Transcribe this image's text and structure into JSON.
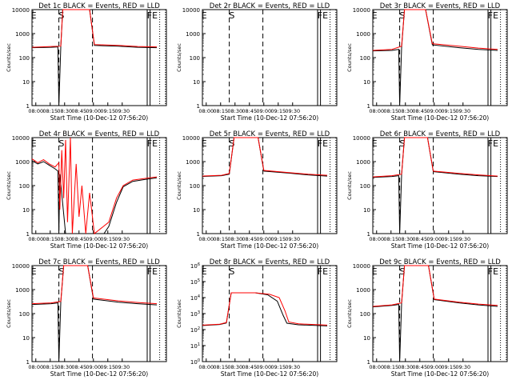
{
  "chart_data": [
    {
      "type": "line",
      "title": "Det 1c BLACK = Events, RED = LLD",
      "xlabel": "Start Time (10-Dec-12 07:56:20)",
      "ylabel": "Counts/sec",
      "x_ticks": [
        "08:00",
        "08:15",
        "08:30",
        "08:45",
        "09:00",
        "09:15",
        "09:30"
      ],
      "y_ticks": [
        "1",
        "10",
        "100",
        "1000",
        "10000"
      ],
      "y_scale": "log",
      "ylim": [
        1,
        10000
      ],
      "markers": [
        "E",
        "S",
        "",
        "",
        "",
        "FE",
        ""
      ],
      "series": [
        {
          "color": "#000000",
          "points": [
            [
              0,
              260
            ],
            [
              20,
              270
            ],
            [
              27,
              280
            ],
            [
              28,
              1
            ],
            [
              30,
              280
            ],
            [
              32,
              10000
            ],
            [
              60,
              10000
            ],
            [
              65,
              320
            ],
            [
              90,
              300
            ],
            [
              110,
              270
            ],
            [
              130,
              260
            ]
          ]
        },
        {
          "color": "#ff0000",
          "points": [
            [
              0,
              270
            ],
            [
              20,
              290
            ],
            [
              30,
              300
            ],
            [
              32,
              10000
            ],
            [
              60,
              10000
            ],
            [
              65,
              350
            ],
            [
              90,
              320
            ],
            [
              110,
              290
            ],
            [
              130,
              280
            ]
          ]
        }
      ]
    },
    {
      "type": "line",
      "title": "Det 2r BLACK = Events, RED = LLD",
      "xlabel": "Start Time (10-Dec-12 07:56:20)",
      "ylabel": "Counts/sec",
      "x_ticks": [
        "08:00",
        "08:15",
        "08:30",
        "08:45",
        "09:00",
        "09:15",
        "09:30"
      ],
      "y_ticks": [
        "1",
        "10",
        "100",
        "1000",
        "10000"
      ],
      "y_scale": "log",
      "ylim": [
        1,
        10000
      ],
      "markers": [
        "E",
        "S",
        "",
        "",
        "",
        "FE",
        ""
      ],
      "series": []
    },
    {
      "type": "line",
      "title": "Det 3r BLACK = Events, RED = LLD",
      "xlabel": "Start Time (10-Dec-12 07:56:20)",
      "ylabel": "Counts/sec",
      "x_ticks": [
        "08:00",
        "08:15",
        "08:30",
        "08:45",
        "09:00",
        "09:15",
        "09:30"
      ],
      "y_ticks": [
        "1",
        "10",
        "100",
        "1000",
        "10000"
      ],
      "y_scale": "log",
      "ylim": [
        1,
        10000
      ],
      "markers": [
        "E",
        "S",
        "",
        "",
        "",
        "FE",
        ""
      ],
      "series": [
        {
          "color": "#000000",
          "points": [
            [
              0,
              190
            ],
            [
              20,
              200
            ],
            [
              27,
              220
            ],
            [
              28,
              1
            ],
            [
              30,
              260
            ],
            [
              33,
              10000
            ],
            [
              55,
              10000
            ],
            [
              62,
              340
            ],
            [
              90,
              260
            ],
            [
              110,
              220
            ],
            [
              130,
              200
            ]
          ]
        },
        {
          "color": "#ff0000",
          "points": [
            [
              0,
              200
            ],
            [
              20,
              220
            ],
            [
              30,
              300
            ],
            [
              33,
              10000
            ],
            [
              55,
              10000
            ],
            [
              62,
              380
            ],
            [
              90,
              300
            ],
            [
              110,
              250
            ],
            [
              130,
              220
            ]
          ]
        }
      ]
    },
    {
      "type": "line",
      "title": "Det 4r BLACK = Events, RED = LLD",
      "xlabel": "Start Time (10-Dec-12 07:56:20)",
      "ylabel": "Counts/sec",
      "x_ticks": [
        "08:00",
        "08:15",
        "08:30",
        "08:45",
        "09:00",
        "09:15",
        "09:30"
      ],
      "y_ticks": [
        "1",
        "10",
        "100",
        "1000",
        "10000"
      ],
      "y_scale": "log",
      "ylim": [
        1,
        10000
      ],
      "markers": [
        "E",
        "S",
        "",
        "",
        "",
        "FE",
        ""
      ],
      "series": [
        {
          "color": "#000000",
          "points": [
            [
              0,
              1100
            ],
            [
              6,
              800
            ],
            [
              12,
              1000
            ],
            [
              18,
              700
            ],
            [
              24,
              500
            ],
            [
              27,
              400
            ],
            [
              28,
              1
            ],
            [
              29,
              300
            ],
            [
              35,
              1
            ],
            [
              60,
              1
            ],
            [
              75,
              1
            ],
            [
              80,
              2
            ],
            [
              88,
              20
            ],
            [
              95,
              90
            ],
            [
              105,
              150
            ],
            [
              118,
              180
            ],
            [
              130,
              210
            ]
          ]
        },
        {
          "color": "#ff0000",
          "points": [
            [
              0,
              1300
            ],
            [
              6,
              900
            ],
            [
              12,
              1200
            ],
            [
              18,
              800
            ],
            [
              24,
              600
            ],
            [
              28,
              900
            ],
            [
              29,
              10
            ],
            [
              31,
              3000
            ],
            [
              33,
              30
            ],
            [
              35,
              8000
            ],
            [
              37,
              3
            ],
            [
              40,
              10000
            ],
            [
              42,
              1
            ],
            [
              46,
              800
            ],
            [
              49,
              5
            ],
            [
              52,
              100
            ],
            [
              56,
              1
            ],
            [
              60,
              50
            ],
            [
              65,
              1
            ],
            [
              80,
              3
            ],
            [
              88,
              30
            ],
            [
              95,
              100
            ],
            [
              105,
              170
            ],
            [
              118,
              200
            ],
            [
              130,
              230
            ]
          ]
        }
      ]
    },
    {
      "type": "line",
      "title": "Det 5r BLACK = Events, RED = LLD",
      "xlabel": "Start Time (10-Dec-12 07:56:20)",
      "ylabel": "Counts/sec",
      "x_ticks": [
        "08:00",
        "08:15",
        "08:30",
        "08:45",
        "09:00",
        "09:15",
        "09:30"
      ],
      "y_ticks": [
        "1",
        "10",
        "100",
        "1000",
        "10000"
      ],
      "y_scale": "log",
      "ylim": [
        1,
        10000
      ],
      "markers": [
        "E",
        "S",
        "",
        "",
        "",
        "FE",
        ""
      ],
      "series": [
        {
          "color": "#000000",
          "points": [
            [
              0,
              240
            ],
            [
              20,
              260
            ],
            [
              28,
              300
            ],
            [
              33,
              10000
            ],
            [
              58,
              10000
            ],
            [
              64,
              400
            ],
            [
              90,
              330
            ],
            [
              110,
              280
            ],
            [
              130,
              250
            ]
          ]
        },
        {
          "color": "#ff0000",
          "points": [
            [
              0,
              250
            ],
            [
              20,
              270
            ],
            [
              28,
              320
            ],
            [
              33,
              10000
            ],
            [
              58,
              10000
            ],
            [
              64,
              430
            ],
            [
              90,
              350
            ],
            [
              110,
              300
            ],
            [
              130,
              270
            ]
          ]
        }
      ]
    },
    {
      "type": "line",
      "title": "Det 6r BLACK = Events, RED = LLD",
      "xlabel": "Start Time (10-Dec-12 07:56:20)",
      "ylabel": "Counts/sec",
      "x_ticks": [
        "08:00",
        "08:15",
        "08:30",
        "08:45",
        "09:00",
        "09:15",
        "09:30"
      ],
      "y_ticks": [
        "1",
        "10",
        "100",
        "1000",
        "10000"
      ],
      "y_scale": "log",
      "ylim": [
        1,
        10000
      ],
      "markers": [
        "E",
        "S",
        "",
        "",
        "",
        "FE",
        ""
      ],
      "series": [
        {
          "color": "#000000",
          "points": [
            [
              0,
              220
            ],
            [
              20,
              240
            ],
            [
              27,
              260
            ],
            [
              28,
              1
            ],
            [
              30,
              280
            ],
            [
              33,
              10000
            ],
            [
              57,
              10000
            ],
            [
              63,
              380
            ],
            [
              90,
              300
            ],
            [
              110,
              260
            ],
            [
              130,
              240
            ]
          ]
        },
        {
          "color": "#ff0000",
          "points": [
            [
              0,
              230
            ],
            [
              20,
              260
            ],
            [
              30,
              300
            ],
            [
              33,
              10000
            ],
            [
              57,
              10000
            ],
            [
              63,
              400
            ],
            [
              90,
              320
            ],
            [
              110,
              280
            ],
            [
              130,
              250
            ]
          ]
        }
      ]
    },
    {
      "type": "line",
      "title": "Det 7c BLACK = Events, RED = LLD",
      "xlabel": "Start Time (10-Dec-12 07:56:20)",
      "ylabel": "Counts/sec",
      "x_ticks": [
        "08:00",
        "08:15",
        "08:30",
        "08:45",
        "09:00",
        "09:15",
        "09:30"
      ],
      "y_ticks": [
        "1",
        "10",
        "100",
        "1000",
        "10000"
      ],
      "y_scale": "log",
      "ylim": [
        1,
        10000
      ],
      "markers": [
        "E",
        "S",
        "",
        "",
        "",
        "FE",
        ""
      ],
      "series": [
        {
          "color": "#000000",
          "points": [
            [
              0,
              240
            ],
            [
              20,
              260
            ],
            [
              27,
              280
            ],
            [
              28,
              1
            ],
            [
              30,
              300
            ],
            [
              33,
              10000
            ],
            [
              58,
              10000
            ],
            [
              64,
              400
            ],
            [
              90,
              300
            ],
            [
              110,
              260
            ],
            [
              130,
              230
            ]
          ]
        },
        {
          "color": "#ff0000",
          "points": [
            [
              0,
              260
            ],
            [
              20,
              280
            ],
            [
              30,
              320
            ],
            [
              33,
              10000
            ],
            [
              58,
              10000
            ],
            [
              64,
              450
            ],
            [
              90,
              340
            ],
            [
              110,
              290
            ],
            [
              130,
              260
            ]
          ]
        }
      ]
    },
    {
      "type": "line",
      "title": "Det 8r BLACK = Events, RED = LLD",
      "xlabel": "Start Time (10-Dec-12 07:56:20)",
      "ylabel": "Counts/sec",
      "x_ticks": [
        "08:00",
        "08:15",
        "08:30",
        "08:45",
        "09:00",
        "09:15",
        "09:30"
      ],
      "y_ticks": [
        "10^0",
        "10^1",
        "10^2",
        "10^3",
        "10^4",
        "10^5",
        "10^6"
      ],
      "y_scale": "log",
      "ylim": [
        1,
        1000000
      ],
      "markers": [
        "E",
        "S",
        "",
        "",
        "",
        "FE",
        ""
      ],
      "series": [
        {
          "color": "#000000",
          "points": [
            [
              0,
              180
            ],
            [
              18,
              210
            ],
            [
              25,
              260
            ],
            [
              30,
              20000
            ],
            [
              55,
              20000
            ],
            [
              68,
              15000
            ],
            [
              78,
              6000
            ],
            [
              84,
              800
            ],
            [
              88,
              250
            ],
            [
              100,
              200
            ],
            [
              130,
              170
            ]
          ]
        },
        {
          "color": "#ff0000",
          "points": [
            [
              0,
              190
            ],
            [
              18,
              220
            ],
            [
              25,
              280
            ],
            [
              30,
              20000
            ],
            [
              55,
              20000
            ],
            [
              70,
              16000
            ],
            [
              80,
              10000
            ],
            [
              86,
              1500
            ],
            [
              90,
              300
            ],
            [
              100,
              230
            ],
            [
              130,
              190
            ]
          ]
        }
      ]
    },
    {
      "type": "line",
      "title": "Det 9c BLACK = Events, RED = LLD",
      "xlabel": "Start Time (10-Dec-12 07:56:20)",
      "ylabel": "Counts/sec",
      "x_ticks": [
        "08:00",
        "08:15",
        "08:30",
        "08:45",
        "09:00",
        "09:15",
        "09:30"
      ],
      "y_ticks": [
        "1",
        "10",
        "100",
        "1000",
        "10000"
      ],
      "y_scale": "log",
      "ylim": [
        1,
        10000
      ],
      "markers": [
        "E",
        "S",
        "",
        "",
        "",
        "FE",
        ""
      ],
      "series": [
        {
          "color": "#000000",
          "points": [
            [
              0,
              190
            ],
            [
              20,
              220
            ],
            [
              27,
              240
            ],
            [
              28,
              1
            ],
            [
              30,
              260
            ],
            [
              33,
              10000
            ],
            [
              58,
              10000
            ],
            [
              64,
              380
            ],
            [
              90,
              280
            ],
            [
              110,
              230
            ],
            [
              130,
              200
            ]
          ]
        },
        {
          "color": "#ff0000",
          "points": [
            [
              0,
              200
            ],
            [
              20,
              230
            ],
            [
              30,
              280
            ],
            [
              33,
              10000
            ],
            [
              58,
              10000
            ],
            [
              64,
              400
            ],
            [
              90,
              300
            ],
            [
              110,
              250
            ],
            [
              130,
              220
            ]
          ]
        }
      ]
    }
  ]
}
